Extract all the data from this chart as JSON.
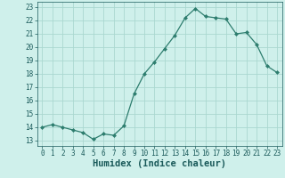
{
  "x": [
    0,
    1,
    2,
    3,
    4,
    5,
    6,
    7,
    8,
    9,
    10,
    11,
    12,
    13,
    14,
    15,
    16,
    17,
    18,
    19,
    20,
    21,
    22,
    23
  ],
  "y": [
    14.0,
    14.2,
    14.0,
    13.8,
    13.6,
    13.1,
    13.5,
    13.4,
    14.1,
    16.5,
    18.0,
    18.9,
    19.9,
    20.9,
    22.2,
    22.9,
    22.3,
    22.2,
    22.1,
    21.0,
    21.1,
    20.2,
    18.6,
    18.1
  ],
  "xlabel": "Humidex (Indice chaleur)",
  "xlim": [
    -0.5,
    23.5
  ],
  "ylim": [
    12.6,
    23.4
  ],
  "yticks": [
    13,
    14,
    15,
    16,
    17,
    18,
    19,
    20,
    21,
    22,
    23
  ],
  "xticks": [
    0,
    1,
    2,
    3,
    4,
    5,
    6,
    7,
    8,
    9,
    10,
    11,
    12,
    13,
    14,
    15,
    16,
    17,
    18,
    19,
    20,
    21,
    22,
    23
  ],
  "line_color": "#2d7d6e",
  "marker": "D",
  "marker_size": 2.0,
  "bg_color": "#cff0eb",
  "grid_color": "#aad8d0",
  "tick_fontsize": 5.5,
  "xlabel_fontsize": 7.5,
  "label_color": "#1a5a5a"
}
